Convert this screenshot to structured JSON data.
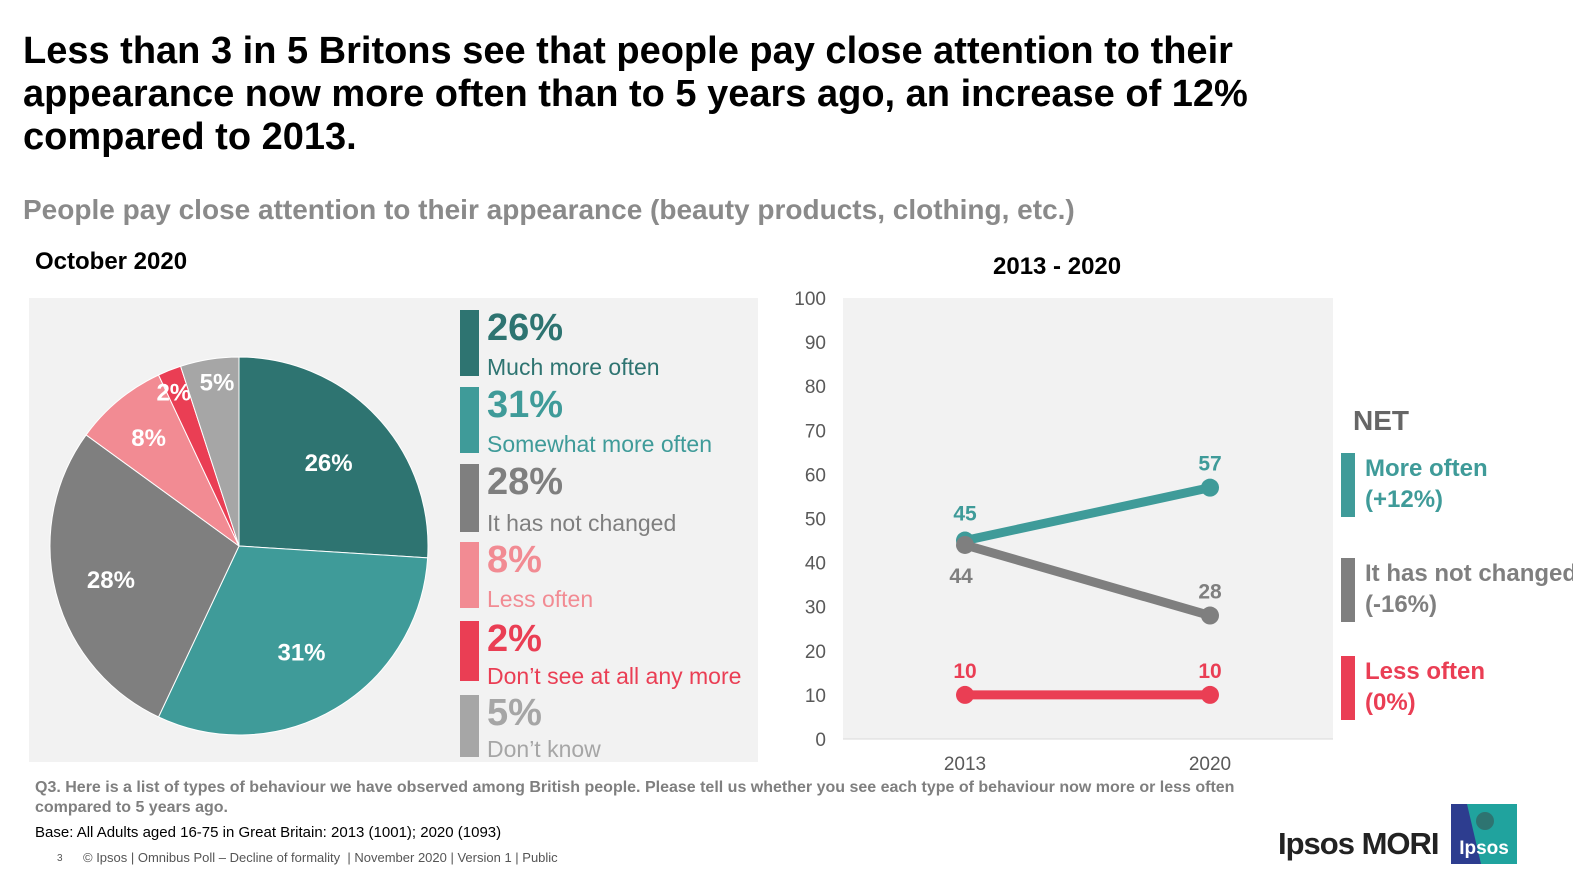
{
  "title": "Less than 3 in 5 Britons see that people pay close attention to their appearance now more often than to 5 years ago, an increase of 12% compared to 2013.",
  "subtitle": "People pay close attention to their appearance (beauty products, clothing, etc.)",
  "colors": {
    "dark_teal": "#2e7471",
    "teal": "#3f9b99",
    "grey": "#7f7f7f",
    "pink": "#f28b93",
    "red": "#ea3e54",
    "light_grey": "#a6a6a6",
    "panel": "#f2f2f2",
    "brand_blue": "#2d3d8f"
  },
  "legend": [
    {
      "pct": "26%",
      "label": "Much more often",
      "color": "#2e7471"
    },
    {
      "pct": "31%",
      "label": "Somewhat more often",
      "color": "#3f9b99"
    },
    {
      "pct": "28%",
      "label": "It has not changed",
      "color": "#7f7f7f"
    },
    {
      "pct": "8%",
      "label": "Less often",
      "color": "#f28b93"
    },
    {
      "pct": "2%",
      "label": "Don’t see at all any more",
      "color": "#ea3e54"
    },
    {
      "pct": "5%",
      "label": "Don’t know",
      "color": "#a6a6a6"
    }
  ],
  "net": {
    "title": "NET",
    "items": [
      {
        "line1": "More often",
        "line2": "(+12%)",
        "color": "#3f9b99"
      },
      {
        "line1": "It has not changed",
        "line2": "(-16%)",
        "color": "#7f7f7f"
      },
      {
        "line1": "Less often",
        "line2": "(0%)",
        "color": "#ea3e54"
      }
    ]
  },
  "chart_data": [
    {
      "type": "pie",
      "title": "October 2020",
      "categories": [
        "Much more often",
        "Somewhat more often",
        "It has not changed",
        "Less often",
        "Don’t see at all any more",
        "Don’t know"
      ],
      "values": [
        26,
        31,
        28,
        8,
        2,
        5
      ],
      "labels": [
        "26%",
        "31%",
        "28%",
        "8%",
        "2%",
        "5%"
      ],
      "colors": [
        "#2e7471",
        "#3f9b99",
        "#7f7f7f",
        "#f28b93",
        "#ea3e54",
        "#a6a6a6"
      ]
    },
    {
      "type": "line",
      "title": "2013 - 2020",
      "x": [
        "2013",
        "2020"
      ],
      "ylim": [
        0,
        100
      ],
      "yticks": [
        0,
        10,
        20,
        30,
        40,
        50,
        60,
        70,
        80,
        90,
        100
      ],
      "grid": false,
      "series": [
        {
          "name": "More often",
          "values": [
            45,
            57
          ],
          "color": "#3f9b99"
        },
        {
          "name": "It has not changed",
          "values": [
            44,
            28
          ],
          "color": "#7f7f7f"
        },
        {
          "name": "Less often",
          "values": [
            10,
            10
          ],
          "color": "#ea3e54"
        }
      ]
    }
  ],
  "footnotes": {
    "question": "Q3. Here is a list of types of behaviour we have observed among British people. Please tell us whether you see each type of behaviour now more or less often compared to 5 years ago.",
    "base": "Base: All Adults aged 16-75 in Great Britain: 2013 (1001); 2020 (1093)",
    "page": "3",
    "footer": "© Ipsos | Omnibus Poll – Decline of formality  | November 2020 | Version 1 | Public"
  },
  "brand": {
    "name": "Ipsos MORI",
    "logo_text": "Ipsos"
  }
}
